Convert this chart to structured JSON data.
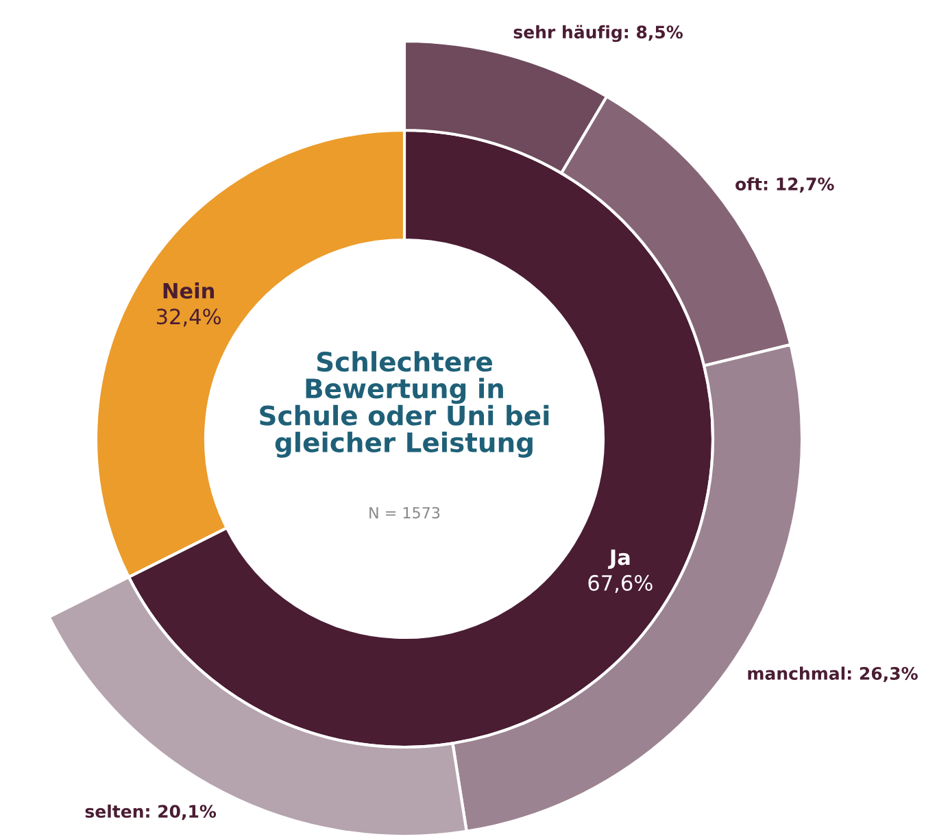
{
  "chart_data": {
    "type": "donut",
    "title": "Schlechtere\nBewertung in\nSchule oder Uni bei\ngleicher Leistung",
    "annotations": [
      "N = 1573"
    ],
    "legend": false,
    "categories": [
      "Ja",
      "Nein",
      null,
      null,
      null,
      null
    ],
    "series": [
      {
        "values": [
          67.6,
          32.4,
          null,
          null,
          null,
          null
        ],
        "value_labels": [
          "67,6%",
          "32,4%",
          null,
          null,
          null,
          null
        ],
        "colors": [
          "#4a1d33",
          "#eb9c2b",
          null,
          null,
          null,
          null
        ]
      },
      {
        "values": [
          null,
          null,
          8.5,
          12.7,
          26.3,
          20.1
        ],
        "value_labels": [
          null,
          null,
          "sehr häufig: 8,5%",
          "oft: 12,7%",
          "manchmal: 26,3%",
          "selten: 20,1%"
        ],
        "colors": [
          null,
          null,
          "#6e4a5c",
          "#856575",
          "#9c8391",
          "#b5a4ad"
        ]
      }
    ]
  }
}
